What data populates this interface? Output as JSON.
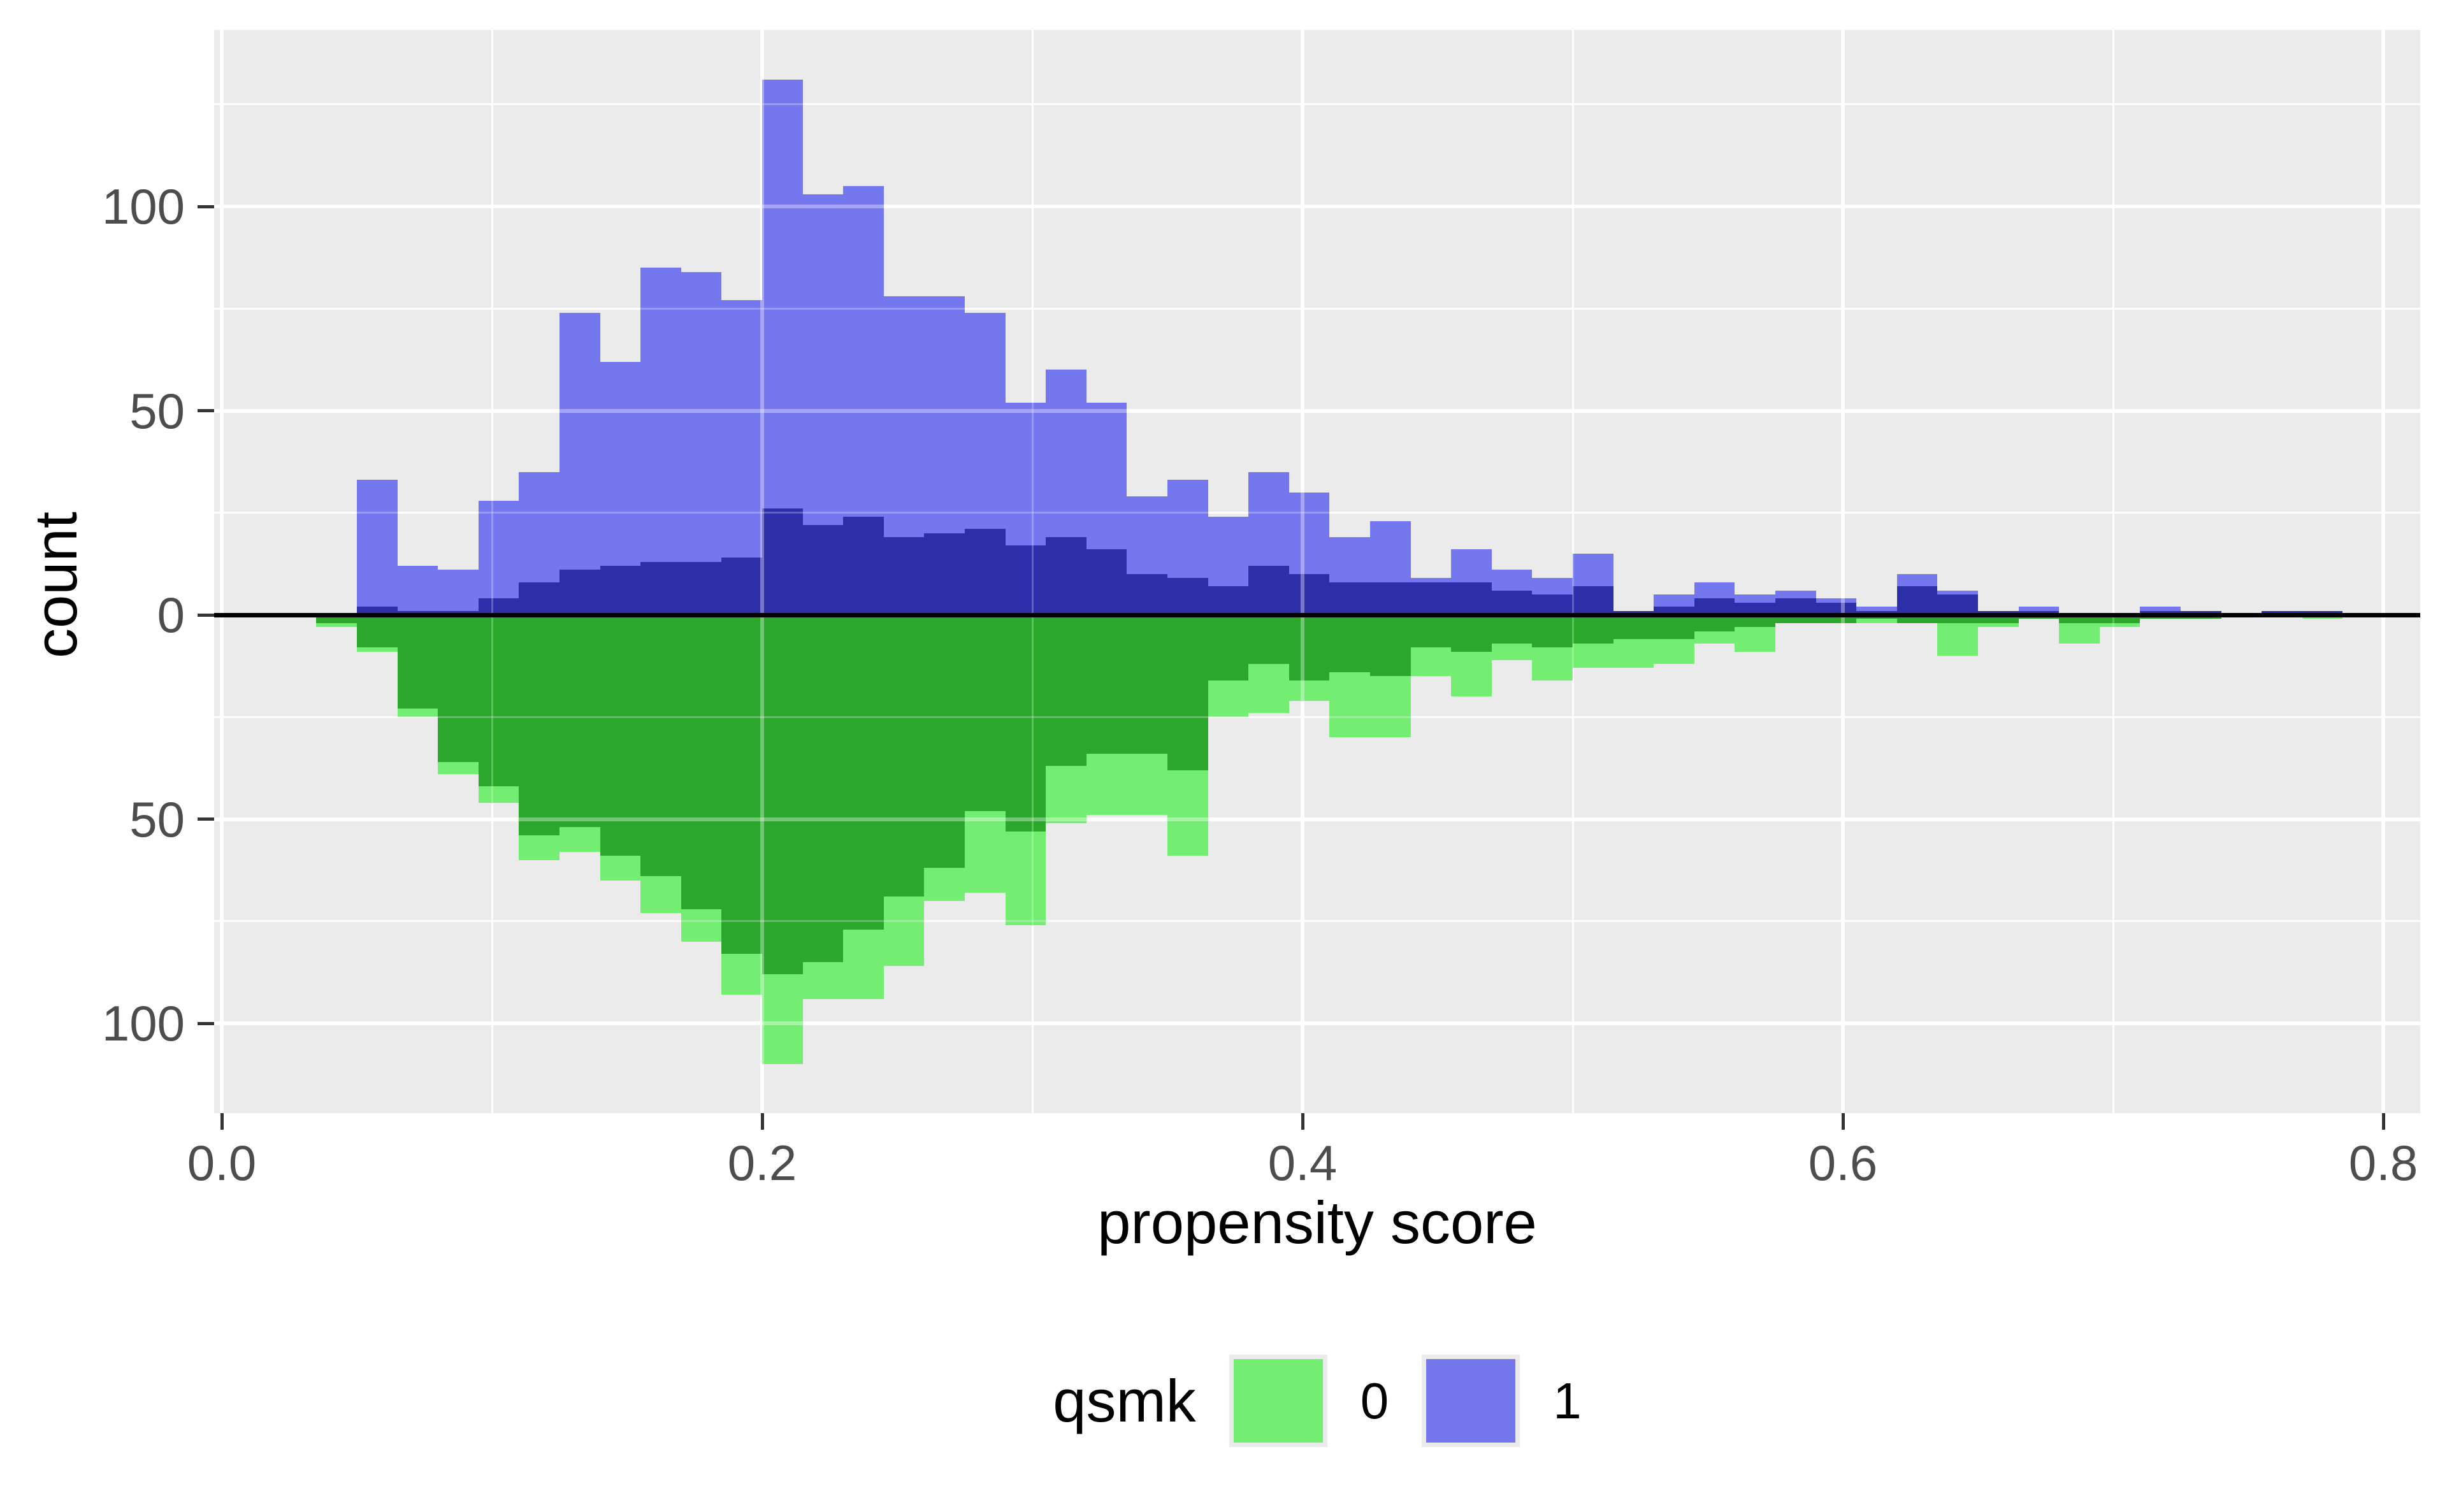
{
  "figure": {
    "background": "#FFFFFF"
  },
  "panel": {
    "background": "#EBEBEB",
    "gridline_color": "#FFFFFF",
    "zero_line_color": "#000000",
    "tick_mark_color": "#333333",
    "tick_label_color": "#4D4D4D"
  },
  "axes": {
    "x": {
      "title": "propensity score",
      "tick_labels": [
        "0.0",
        "0.2",
        "0.4",
        "0.6",
        "0.8"
      ],
      "tick_values": [
        0.0,
        0.2,
        0.4,
        0.6,
        0.8
      ],
      "minor_values": [
        0.1,
        0.3,
        0.5,
        0.7
      ],
      "range": [
        -0.002,
        0.816
      ]
    },
    "y": {
      "title": "count",
      "tick_labels": [
        "100",
        "50",
        "0",
        "50",
        "100"
      ],
      "tick_values": [
        100,
        50,
        0,
        -50,
        -100
      ],
      "minor_values": [
        125,
        75,
        25,
        -25,
        -75,
        -125
      ],
      "range": [
        -122,
        143
      ]
    }
  },
  "legend": {
    "title": "qsmk",
    "key_background": "#EBEBEB",
    "items": [
      {
        "label": "0",
        "color": "#73EE73"
      },
      {
        "label": "1",
        "color": "#7577EE"
      }
    ]
  },
  "chart_data": {
    "type": "bar",
    "subtype": "mirrored-histogram",
    "title": "",
    "xlabel": "propensity score",
    "ylabel": "count",
    "grid": true,
    "legend_position": "bottom",
    "bin_start": 0.035,
    "bin_width": 0.015,
    "n_bins": 50,
    "xlim": [
      -0.002,
      0.816
    ],
    "ylim": [
      -122,
      143
    ],
    "series": [
      {
        "name": "qsmk 1 total (light blue, above axis)",
        "direction": "up",
        "color": "#7577EE",
        "values": [
          0,
          33,
          12,
          11,
          28,
          35,
          74,
          62,
          85,
          84,
          77,
          131,
          103,
          105,
          78,
          78,
          74,
          52,
          60,
          52,
          29,
          33,
          24,
          35,
          30,
          19,
          23,
          9,
          16,
          11,
          9,
          15,
          1,
          5,
          8,
          5,
          6,
          4,
          2,
          10,
          6,
          1,
          2,
          0,
          0,
          2,
          1,
          0,
          1,
          1
        ]
      },
      {
        "name": "qsmk 1 overlay (dark blue, above axis)",
        "direction": "up",
        "color": "#2D2FA8",
        "values": [
          0,
          2,
          1,
          1,
          4,
          8,
          11,
          12,
          13,
          13,
          14,
          26,
          22,
          24,
          19,
          20,
          21,
          17,
          19,
          16,
          10,
          9,
          7,
          12,
          10,
          8,
          8,
          8,
          8,
          6,
          5,
          7,
          1,
          2,
          4,
          3,
          4,
          3,
          1,
          7,
          5,
          1,
          1,
          0,
          0,
          1,
          1,
          0,
          1,
          1
        ]
      },
      {
        "name": "qsmk 0 total (light green, below axis)",
        "direction": "down",
        "color": "#73EE73",
        "values": [
          3,
          9,
          25,
          39,
          46,
          60,
          58,
          65,
          73,
          80,
          93,
          110,
          94,
          94,
          86,
          70,
          68,
          76,
          51,
          49,
          49,
          59,
          25,
          24,
          21,
          30,
          30,
          15,
          20,
          11,
          16,
          13,
          13,
          12,
          7,
          9,
          2,
          2,
          2,
          2,
          10,
          3,
          1,
          7,
          3,
          1,
          1,
          0,
          0,
          1
        ]
      },
      {
        "name": "qsmk 0 overlay (dark green, below axis)",
        "direction": "down",
        "color": "#2BA82B",
        "values": [
          2,
          8,
          23,
          36,
          42,
          54,
          52,
          59,
          64,
          72,
          83,
          88,
          85,
          77,
          69,
          62,
          48,
          53,
          37,
          34,
          34,
          38,
          16,
          12,
          16,
          14,
          15,
          8,
          9,
          7,
          8,
          7,
          6,
          6,
          4,
          3,
          2,
          2,
          1,
          2,
          2,
          2,
          1,
          2,
          2,
          1,
          1,
          0,
          0,
          0
        ]
      }
    ]
  }
}
